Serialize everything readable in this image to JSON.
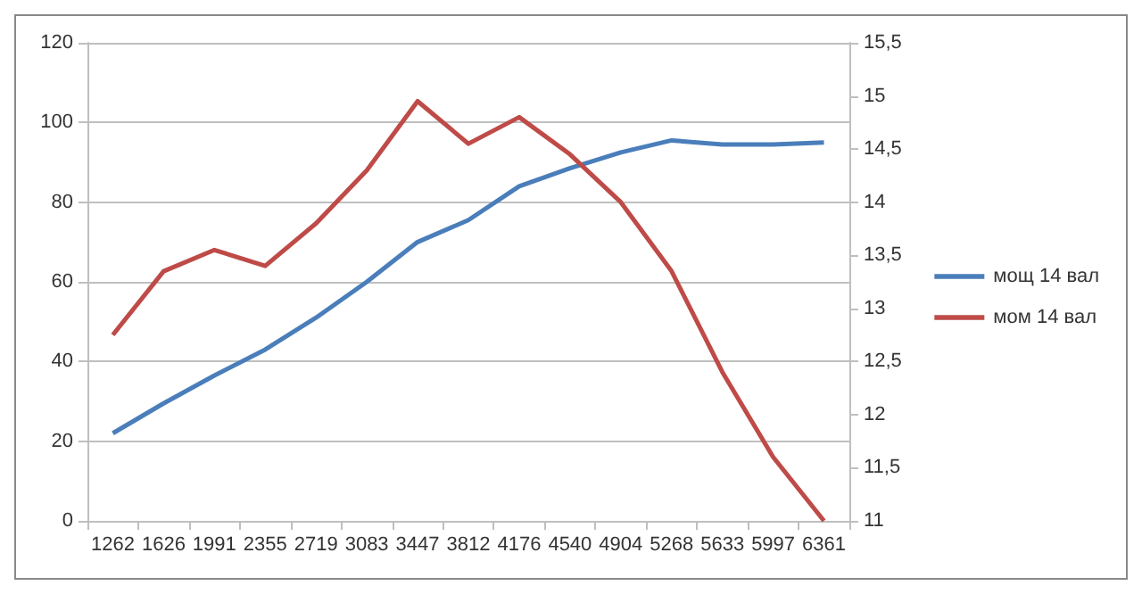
{
  "chart_data": {
    "type": "line",
    "categories": [
      "1262",
      "1626",
      "1991",
      "2355",
      "2719",
      "3083",
      "3447",
      "3812",
      "4176",
      "4540",
      "4904",
      "5268",
      "5633",
      "5997",
      "6361"
    ],
    "series": [
      {
        "name": "мощ 14 вал",
        "color": "#4a7ebb",
        "values": [
          22,
          29.5,
          36.5,
          43,
          51,
          60,
          70,
          75.5,
          84,
          88.5,
          92.5,
          95.5,
          94.5,
          94.5,
          95
        ]
      },
      {
        "name": "мом 14 вал",
        "color": "#be4b48",
        "axis": "y2",
        "values": [
          12.75,
          13.35,
          13.55,
          13.4,
          13.8,
          14.3,
          14.95,
          14.55,
          14.8,
          14.45,
          14.0,
          13.35,
          12.4,
          11.6,
          11.0
        ]
      }
    ],
    "ylim": [
      0,
      120
    ],
    "yticks": [
      0,
      20,
      40,
      60,
      80,
      100,
      120
    ],
    "y2lim": [
      11,
      15.5
    ],
    "y2ticks": [
      11,
      {
        "value": 11.5,
        "label": "11,5"
      },
      12,
      {
        "value": 12.5,
        "label": "12,5"
      },
      13,
      {
        "value": 13.5,
        "label": "13,5"
      },
      14,
      {
        "value": 14.5,
        "label": "14,5"
      },
      15,
      {
        "value": 15.5,
        "label": "15,5"
      }
    ],
    "grid": "y",
    "legend": "right",
    "marker": "none",
    "line_style": "solid"
  }
}
